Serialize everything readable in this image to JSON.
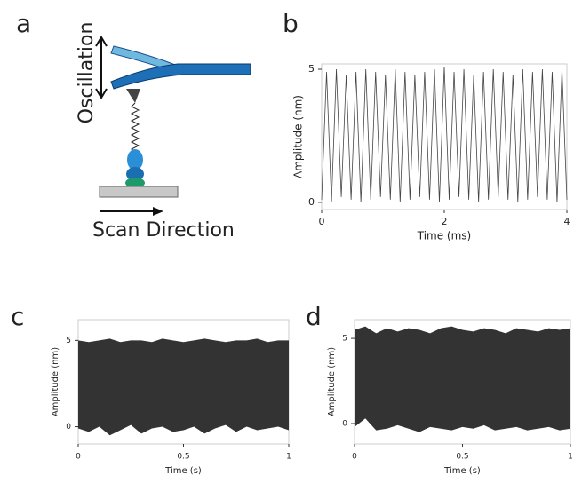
{
  "diagram": {
    "panel": "a",
    "oscillation": "Oscillation",
    "scan": "Scan Direction"
  },
  "chart_data": [
    {
      "panel": "b",
      "type": "line",
      "xlabel": "Time (ms)",
      "ylabel": "Amplitude (nm)",
      "color": "#444444",
      "xlim": [
        0,
        4
      ],
      "xticks": [
        0,
        2,
        4
      ],
      "ylim": [
        -0.27,
        5.2
      ],
      "yticks": [
        0,
        5
      ],
      "x": [
        0,
        0.08,
        0.16,
        0.24,
        0.32,
        0.4,
        0.48,
        0.56,
        0.64,
        0.72,
        0.8,
        0.88,
        0.96,
        1.04,
        1.12,
        1.2,
        1.28,
        1.36,
        1.44,
        1.52,
        1.6,
        1.68,
        1.76,
        1.84,
        1.92,
        2,
        2.08,
        2.16,
        2.24,
        2.32,
        2.4,
        2.48,
        2.56,
        2.64,
        2.72,
        2.8,
        2.88,
        2.96,
        3.04,
        3.12,
        3.2,
        3.28,
        3.36,
        3.44,
        3.52,
        3.6,
        3.68,
        3.76,
        3.84,
        3.92,
        4
      ],
      "values": [
        0.1,
        4.9,
        0.0,
        5.0,
        0.2,
        4.8,
        0.1,
        4.9,
        0.0,
        5.0,
        0.1,
        4.9,
        0.2,
        4.8,
        0.1,
        5.0,
        0.0,
        4.9,
        0.1,
        4.8,
        0.2,
        4.9,
        0.1,
        5.0,
        0.0,
        5.1,
        0.1,
        4.9,
        0.2,
        5.0,
        0.1,
        4.8,
        0.0,
        4.9,
        0.1,
        5.0,
        0.2,
        4.9,
        0.1,
        4.8,
        0.0,
        5.0,
        0.1,
        4.9,
        0.2,
        5.0,
        0.1,
        4.9,
        0.0,
        5.0,
        0.1
      ]
    },
    {
      "panel": "c",
      "type": "band",
      "xlabel": "Time (s)",
      "ylabel": "Amplitude (nm)",
      "color": "#333333",
      "xlim": [
        0,
        1
      ],
      "xticks": [
        0,
        0.5,
        1
      ],
      "ylim": [
        -1,
        6.2
      ],
      "yticks": [
        0,
        5
      ],
      "x": [
        0,
        0.05,
        0.1,
        0.15,
        0.2,
        0.25,
        0.3,
        0.35,
        0.4,
        0.45,
        0.5,
        0.55,
        0.6,
        0.65,
        0.7,
        0.75,
        0.8,
        0.85,
        0.9,
        0.95,
        1
      ],
      "high": [
        5.0,
        4.9,
        5.0,
        5.1,
        4.9,
        5.0,
        5.0,
        4.9,
        5.1,
        5.0,
        4.9,
        5.0,
        5.1,
        5.0,
        4.9,
        5.0,
        5.0,
        5.1,
        4.9,
        5.0,
        5.0
      ],
      "low": [
        -0.1,
        -0.3,
        0.0,
        -0.5,
        -0.2,
        0.1,
        -0.4,
        -0.1,
        0.0,
        -0.3,
        -0.2,
        0.0,
        -0.4,
        -0.1,
        0.1,
        -0.3,
        0.0,
        -0.2,
        -0.1,
        0.0,
        -0.2
      ]
    },
    {
      "panel": "d",
      "type": "band",
      "xlabel": "Time (s)",
      "ylabel": "Amplitude (nm)",
      "color": "#333333",
      "xlim": [
        0,
        1
      ],
      "xticks": [
        0,
        0.5,
        1
      ],
      "ylim": [
        -1.2,
        6.1
      ],
      "yticks": [
        0,
        5
      ],
      "x": [
        0,
        0.05,
        0.1,
        0.15,
        0.2,
        0.25,
        0.3,
        0.35,
        0.4,
        0.45,
        0.5,
        0.55,
        0.6,
        0.65,
        0.7,
        0.75,
        0.8,
        0.85,
        0.9,
        0.95,
        1
      ],
      "high": [
        5.5,
        5.7,
        5.3,
        5.6,
        5.4,
        5.6,
        5.5,
        5.3,
        5.6,
        5.7,
        5.5,
        5.4,
        5.6,
        5.5,
        5.3,
        5.6,
        5.5,
        5.4,
        5.6,
        5.5,
        5.6
      ],
      "low": [
        -0.2,
        0.3,
        -0.4,
        -0.3,
        -0.1,
        -0.3,
        -0.5,
        -0.2,
        -0.3,
        -0.4,
        -0.2,
        -0.3,
        -0.1,
        -0.4,
        -0.3,
        -0.2,
        -0.4,
        -0.3,
        -0.2,
        -0.4,
        -0.3
      ]
    }
  ]
}
